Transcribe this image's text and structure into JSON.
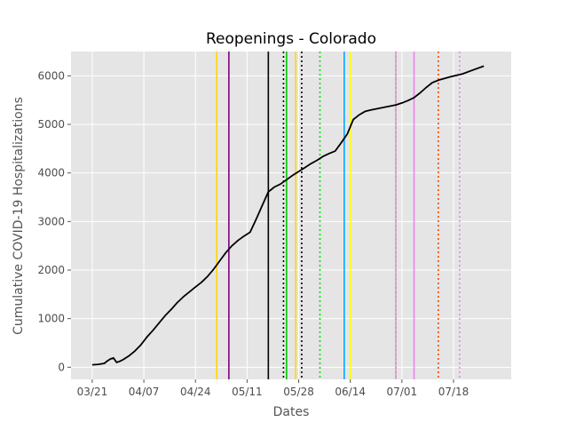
{
  "chart_data": {
    "type": "line",
    "title": "Reopenings - Colorado",
    "xlabel": "Dates",
    "ylabel": "Cumulative COVID-19 Hospitalizations",
    "x_tick_labels": [
      "03/21",
      "04/07",
      "04/24",
      "05/11",
      "05/28",
      "06/14",
      "07/01",
      "07/18"
    ],
    "x_tick_dates": [
      "2020-03-21",
      "2020-04-07",
      "2020-04-24",
      "2020-05-11",
      "2020-05-28",
      "2020-06-14",
      "2020-07-01",
      "2020-07-18"
    ],
    "xlim": [
      "2020-03-14",
      "2020-08-06"
    ],
    "ylim": [
      -250,
      6500
    ],
    "y_ticks": [
      0,
      1000,
      2000,
      3000,
      4000,
      5000,
      6000
    ],
    "grid": true,
    "series": [
      {
        "color": "#000000",
        "points": [
          [
            "2020-03-21",
            50
          ],
          [
            "2020-03-23",
            60
          ],
          [
            "2020-03-25",
            80
          ],
          [
            "2020-03-26",
            130
          ],
          [
            "2020-03-27",
            170
          ],
          [
            "2020-03-28",
            190
          ],
          [
            "2020-03-29",
            100
          ],
          [
            "2020-03-30",
            120
          ],
          [
            "2020-03-31",
            150
          ],
          [
            "2020-04-02",
            230
          ],
          [
            "2020-04-04",
            330
          ],
          [
            "2020-04-06",
            460
          ],
          [
            "2020-04-08",
            620
          ],
          [
            "2020-04-10",
            760
          ],
          [
            "2020-04-12",
            910
          ],
          [
            "2020-04-14",
            1060
          ],
          [
            "2020-04-16",
            1190
          ],
          [
            "2020-04-18",
            1330
          ],
          [
            "2020-04-20",
            1450
          ],
          [
            "2020-04-22",
            1550
          ],
          [
            "2020-04-24",
            1650
          ],
          [
            "2020-04-26",
            1750
          ],
          [
            "2020-04-28",
            1870
          ],
          [
            "2020-04-30",
            2020
          ],
          [
            "2020-05-02",
            2190
          ],
          [
            "2020-05-04",
            2360
          ],
          [
            "2020-05-06",
            2500
          ],
          [
            "2020-05-08",
            2610
          ],
          [
            "2020-05-10",
            2700
          ],
          [
            "2020-05-12",
            2780
          ],
          [
            "2020-05-14",
            3050
          ],
          [
            "2020-05-16",
            3330
          ],
          [
            "2020-05-18",
            3610
          ],
          [
            "2020-05-20",
            3710
          ],
          [
            "2020-05-22",
            3770
          ],
          [
            "2020-05-24",
            3860
          ],
          [
            "2020-05-26",
            3950
          ],
          [
            "2020-05-28",
            4030
          ],
          [
            "2020-05-30",
            4110
          ],
          [
            "2020-06-01",
            4190
          ],
          [
            "2020-06-03",
            4260
          ],
          [
            "2020-06-05",
            4340
          ],
          [
            "2020-06-07",
            4400
          ],
          [
            "2020-06-09",
            4450
          ],
          [
            "2020-06-11",
            4620
          ],
          [
            "2020-06-13",
            4800
          ],
          [
            "2020-06-15",
            5100
          ],
          [
            "2020-06-17",
            5200
          ],
          [
            "2020-06-19",
            5270
          ],
          [
            "2020-06-21",
            5300
          ],
          [
            "2020-06-25",
            5350
          ],
          [
            "2020-06-29",
            5400
          ],
          [
            "2020-07-01",
            5440
          ],
          [
            "2020-07-03",
            5490
          ],
          [
            "2020-07-05",
            5550
          ],
          [
            "2020-07-07",
            5650
          ],
          [
            "2020-07-09",
            5760
          ],
          [
            "2020-07-11",
            5860
          ],
          [
            "2020-07-13",
            5910
          ],
          [
            "2020-07-17",
            5980
          ],
          [
            "2020-07-21",
            6040
          ],
          [
            "2020-07-24",
            6110
          ],
          [
            "2020-07-28",
            6200
          ]
        ]
      }
    ],
    "vertical_lines": [
      {
        "date": "2020-05-01",
        "color": "#ffd700",
        "style": "solid"
      },
      {
        "date": "2020-05-05",
        "color": "#800080",
        "style": "solid"
      },
      {
        "date": "2020-05-18",
        "color": "#000000",
        "style": "solid"
      },
      {
        "date": "2020-05-23",
        "color": "#000000",
        "style": "dotted"
      },
      {
        "date": "2020-05-24",
        "color": "#00c800",
        "style": "solid"
      },
      {
        "date": "2020-05-27",
        "color": "#ffd700",
        "style": "solid"
      },
      {
        "date": "2020-05-29",
        "color": "#000000",
        "style": "dotted"
      },
      {
        "date": "2020-06-04",
        "color": "#00e000",
        "style": "dotted"
      },
      {
        "date": "2020-06-12",
        "color": "#00aaff",
        "style": "solid"
      },
      {
        "date": "2020-06-14",
        "color": "#ffff00",
        "style": "solid"
      },
      {
        "date": "2020-06-29",
        "color": "#ff4500",
        "style": "dotted"
      },
      {
        "date": "2020-06-29",
        "color": "#d0a0d0",
        "style": "solid"
      },
      {
        "date": "2020-07-05",
        "color": "#ee82ee",
        "style": "solid"
      },
      {
        "date": "2020-07-13",
        "color": "#ff4500",
        "style": "dotted"
      },
      {
        "date": "2020-07-20",
        "color": "#ee82ee",
        "style": "dotted"
      }
    ]
  }
}
